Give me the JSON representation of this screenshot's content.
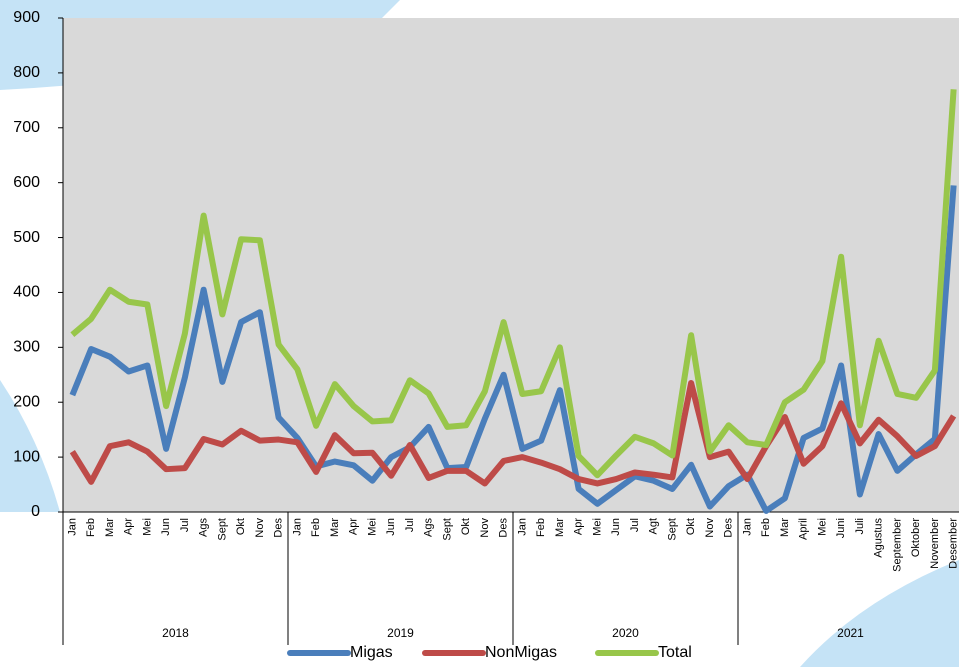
{
  "chart_data": {
    "type": "line",
    "categories": [
      "Jan",
      "Feb",
      "Mar",
      "Apr",
      "Mei",
      "Jun",
      "Jul",
      "Ags",
      "Sept",
      "Okt",
      "Nov",
      "Des",
      "Jan",
      "Feb",
      "Mar",
      "Apr",
      "Mei",
      "Jun",
      "Jul",
      "Ags",
      "Sept",
      "Okt",
      "Nov",
      "Des",
      "Jan",
      "Feb",
      "Mar",
      "Apr",
      "Mei",
      "Jun",
      "Jul",
      "Agt",
      "Sept",
      "Okt",
      "Nov",
      "Des",
      "Jan",
      "Feb",
      "Mar",
      "April",
      "Mei",
      "Juni",
      "Juli",
      "Agustus",
      "September",
      "Oktober",
      "November",
      "Desember"
    ],
    "years": [
      "2018",
      "2019",
      "2020",
      "2021"
    ],
    "series": [
      {
        "name": "Migas",
        "color": "#4a7ebb",
        "values": [
          213,
          297,
          283,
          256,
          267,
          115,
          245,
          405,
          237,
          346,
          364,
          172,
          135,
          83,
          92,
          85,
          57,
          100,
          118,
          155,
          80,
          82,
          170,
          250,
          115,
          130,
          222,
          42,
          15,
          40,
          65,
          57,
          42,
          86,
          10,
          47,
          68,
          2,
          25,
          135,
          152,
          267,
          32,
          142,
          75,
          105,
          133,
          595
        ]
      },
      {
        "name": "NonMigas",
        "color": "#be4b48",
        "values": [
          110,
          55,
          120,
          127,
          110,
          78,
          80,
          133,
          123,
          148,
          130,
          132,
          127,
          73,
          140,
          107,
          108,
          66,
          122,
          62,
          75,
          75,
          52,
          93,
          100,
          90,
          78,
          60,
          52,
          60,
          72,
          68,
          63,
          235,
          100,
          110,
          60,
          120,
          173,
          88,
          120,
          198,
          125,
          168,
          138,
          102,
          120,
          175
        ]
      },
      {
        "name": "Total",
        "color": "#98c64a",
        "values": [
          323,
          352,
          405,
          383,
          378,
          193,
          325,
          540,
          360,
          497,
          495,
          305,
          260,
          157,
          233,
          193,
          165,
          167,
          240,
          216,
          155,
          158,
          220,
          346,
          215,
          220,
          300,
          102,
          67,
          103,
          137,
          125,
          103,
          322,
          110,
          158,
          127,
          122,
          200,
          223,
          275,
          465,
          158,
          312,
          215,
          208,
          258,
          770
        ]
      }
    ],
    "ylim": [
      0,
      900
    ],
    "yticks": [
      0,
      100,
      200,
      300,
      400,
      500,
      600,
      700,
      800,
      900
    ]
  }
}
